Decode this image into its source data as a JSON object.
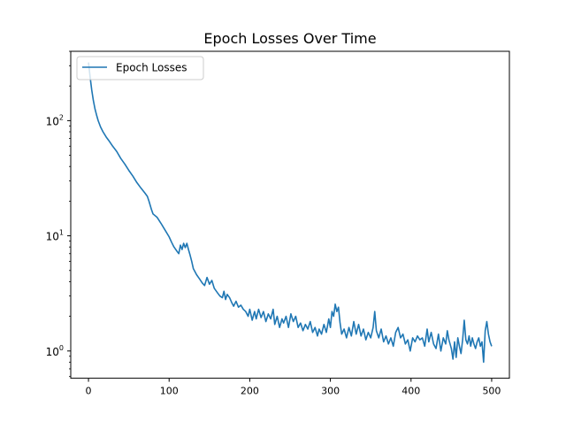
{
  "chart_data": {
    "type": "line",
    "title": "Epoch Losses Over Time",
    "xlabel": "",
    "ylabel": "",
    "yscale": "log",
    "xlim": [
      -22,
      522
    ],
    "ylim": [
      0.58,
      400
    ],
    "x_ticks": [
      {
        "value": 0,
        "label": "0"
      },
      {
        "value": 100,
        "label": "100"
      },
      {
        "value": 200,
        "label": "200"
      },
      {
        "value": 300,
        "label": "300"
      },
      {
        "value": 400,
        "label": "400"
      },
      {
        "value": 500,
        "label": "500"
      }
    ],
    "y_ticks": [
      {
        "value": 1,
        "base": "10",
        "exp": "0"
      },
      {
        "value": 10,
        "base": "10",
        "exp": "1"
      },
      {
        "value": 100,
        "base": "10",
        "exp": "2"
      }
    ],
    "grid": false,
    "legend": {
      "position": "top-left"
    },
    "colors": {
      "line": "#1f77b4",
      "axes": "#000000",
      "background": "#ffffff"
    },
    "series": [
      {
        "name": "Epoch Losses",
        "points": [
          [
            0,
            320
          ],
          [
            2,
            240
          ],
          [
            4,
            185
          ],
          [
            6,
            150
          ],
          [
            8,
            127
          ],
          [
            10,
            112
          ],
          [
            12,
            100
          ],
          [
            15,
            88
          ],
          [
            18,
            80
          ],
          [
            22,
            72
          ],
          [
            26,
            66
          ],
          [
            30,
            60
          ],
          [
            35,
            54
          ],
          [
            40,
            47
          ],
          [
            45,
            42
          ],
          [
            50,
            37
          ],
          [
            55,
            33
          ],
          [
            60,
            29
          ],
          [
            65,
            26
          ],
          [
            70,
            23.5
          ],
          [
            73,
            22
          ],
          [
            75,
            20
          ],
          [
            78,
            17
          ],
          [
            80,
            15.5
          ],
          [
            85,
            14.5
          ],
          [
            90,
            12.8
          ],
          [
            95,
            11.2
          ],
          [
            100,
            9.8
          ],
          [
            103,
            8.8
          ],
          [
            106,
            8.0
          ],
          [
            110,
            7.3
          ],
          [
            112,
            7.0
          ],
          [
            114,
            8.3
          ],
          [
            116,
            7.6
          ],
          [
            118,
            8.6
          ],
          [
            120,
            7.9
          ],
          [
            122,
            8.6
          ],
          [
            124,
            7.6
          ],
          [
            126,
            6.8
          ],
          [
            128,
            6.0
          ],
          [
            130,
            5.2
          ],
          [
            134,
            4.6
          ],
          [
            138,
            4.2
          ],
          [
            141,
            3.9
          ],
          [
            144,
            3.7
          ],
          [
            147,
            4.35
          ],
          [
            150,
            3.8
          ],
          [
            153,
            4.1
          ],
          [
            156,
            3.5
          ],
          [
            160,
            3.2
          ],
          [
            163,
            3.0
          ],
          [
            166,
            2.9
          ],
          [
            168,
            3.3
          ],
          [
            170,
            2.8
          ],
          [
            172,
            3.1
          ],
          [
            175,
            2.9
          ],
          [
            178,
            2.6
          ],
          [
            180,
            2.45
          ],
          [
            183,
            2.7
          ],
          [
            186,
            2.4
          ],
          [
            189,
            2.5
          ],
          [
            192,
            2.3
          ],
          [
            195,
            2.2
          ],
          [
            198,
            2.0
          ],
          [
            200,
            2.3
          ],
          [
            203,
            1.85
          ],
          [
            206,
            2.2
          ],
          [
            208,
            1.9
          ],
          [
            211,
            2.3
          ],
          [
            214,
            1.95
          ],
          [
            217,
            2.2
          ],
          [
            220,
            1.8
          ],
          [
            223,
            2.1
          ],
          [
            226,
            1.9
          ],
          [
            229,
            2.3
          ],
          [
            231,
            1.7
          ],
          [
            234,
            2.0
          ],
          [
            237,
            1.6
          ],
          [
            240,
            1.9
          ],
          [
            242,
            1.75
          ],
          [
            245,
            2.0
          ],
          [
            248,
            1.6
          ],
          [
            251,
            2.1
          ],
          [
            254,
            1.8
          ],
          [
            257,
            2.0
          ],
          [
            260,
            1.6
          ],
          [
            263,
            1.75
          ],
          [
            266,
            1.5
          ],
          [
            269,
            1.7
          ],
          [
            272,
            1.55
          ],
          [
            275,
            1.8
          ],
          [
            278,
            1.45
          ],
          [
            281,
            1.6
          ],
          [
            284,
            1.35
          ],
          [
            286,
            1.55
          ],
          [
            289,
            1.4
          ],
          [
            292,
            1.7
          ],
          [
            295,
            1.45
          ],
          [
            298,
            1.9
          ],
          [
            300,
            1.6
          ],
          [
            302,
            2.2
          ],
          [
            304,
            2.0
          ],
          [
            306,
            2.55
          ],
          [
            308,
            2.2
          ],
          [
            310,
            2.4
          ],
          [
            312,
            1.75
          ],
          [
            314,
            1.4
          ],
          [
            317,
            1.55
          ],
          [
            320,
            1.3
          ],
          [
            323,
            1.6
          ],
          [
            326,
            1.35
          ],
          [
            329,
            1.8
          ],
          [
            332,
            1.4
          ],
          [
            335,
            1.7
          ],
          [
            338,
            1.35
          ],
          [
            341,
            1.55
          ],
          [
            344,
            1.25
          ],
          [
            347,
            1.45
          ],
          [
            350,
            1.3
          ],
          [
            353,
            1.6
          ],
          [
            355,
            2.2
          ],
          [
            357,
            1.5
          ],
          [
            360,
            1.3
          ],
          [
            363,
            1.55
          ],
          [
            366,
            1.2
          ],
          [
            369,
            1.35
          ],
          [
            372,
            1.15
          ],
          [
            375,
            1.3
          ],
          [
            378,
            1.1
          ],
          [
            381,
            1.45
          ],
          [
            384,
            1.6
          ],
          [
            387,
            1.3
          ],
          [
            390,
            1.4
          ],
          [
            393,
            1.15
          ],
          [
            396,
            1.25
          ],
          [
            399,
            1.0
          ],
          [
            402,
            1.3
          ],
          [
            405,
            1.2
          ],
          [
            408,
            1.35
          ],
          [
            411,
            1.25
          ],
          [
            414,
            1.3
          ],
          [
            417,
            1.1
          ],
          [
            420,
            1.55
          ],
          [
            422,
            1.2
          ],
          [
            425,
            1.45
          ],
          [
            428,
            1.15
          ],
          [
            431,
            1.05
          ],
          [
            434,
            1.4
          ],
          [
            437,
            1.0
          ],
          [
            440,
            1.3
          ],
          [
            443,
            1.15
          ],
          [
            445,
            1.5
          ],
          [
            447,
            1.25
          ],
          [
            450,
            1.05
          ],
          [
            452,
            0.85
          ],
          [
            454,
            1.2
          ],
          [
            456,
            0.88
          ],
          [
            458,
            1.3
          ],
          [
            460,
            1.1
          ],
          [
            462,
            0.95
          ],
          [
            464,
            1.25
          ],
          [
            466,
            1.85
          ],
          [
            468,
            1.25
          ],
          [
            470,
            1.15
          ],
          [
            472,
            1.35
          ],
          [
            474,
            1.1
          ],
          [
            476,
            1.3
          ],
          [
            478,
            1.15
          ],
          [
            480,
            1.05
          ],
          [
            482,
            1.2
          ],
          [
            484,
            1.3
          ],
          [
            486,
            1.1
          ],
          [
            488,
            1.2
          ],
          [
            490,
            0.8
          ],
          [
            492,
            1.5
          ],
          [
            494,
            1.8
          ],
          [
            496,
            1.4
          ],
          [
            498,
            1.2
          ],
          [
            500,
            1.1
          ]
        ]
      }
    ]
  }
}
